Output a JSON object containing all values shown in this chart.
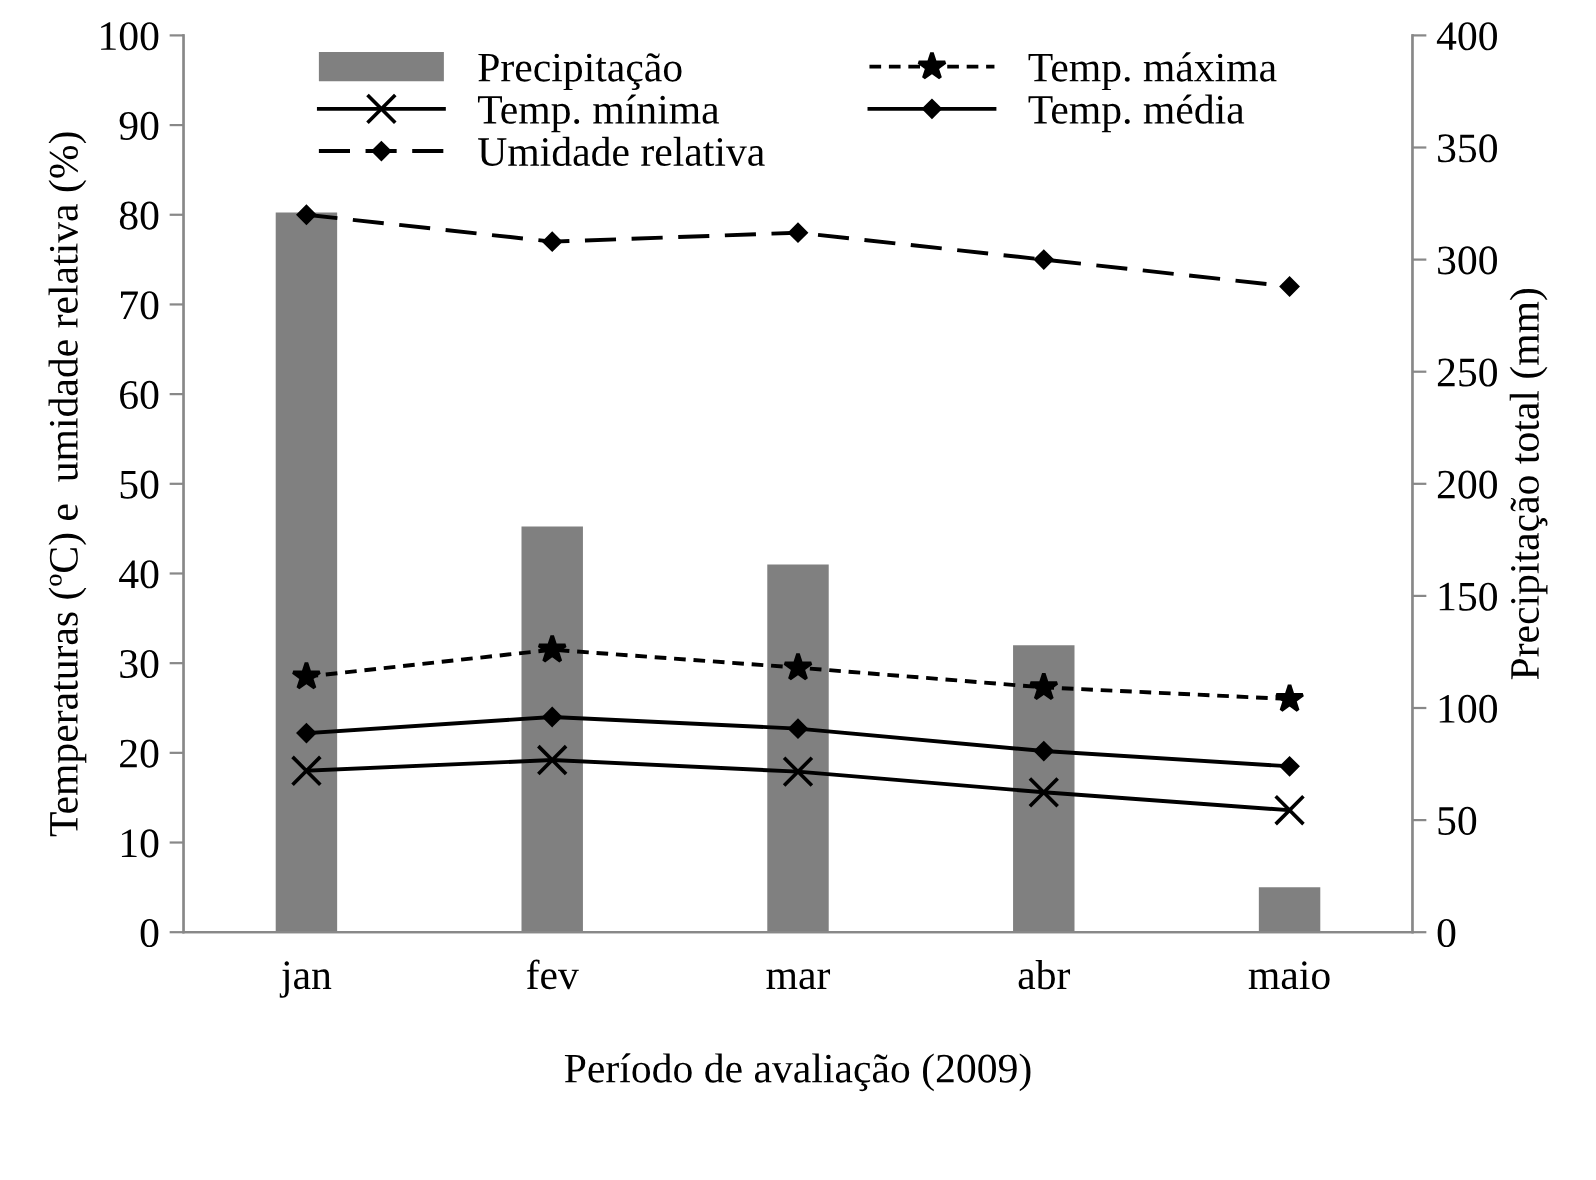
{
  "chart_data": {
    "type": "line",
    "xlabel": "Período de avaliação (2009)",
    "ylabel": "Temperaturas (ºC) e  umidade relativa (%)",
    "y2label": "Precipitação total (mm)",
    "categories": [
      "jan",
      "fev",
      "mar",
      "abr",
      "maio"
    ],
    "series": [
      {
        "name": "Precipitação",
        "type": "bar",
        "axis": "y2",
        "color": "#808080",
        "values": [
          321,
          181,
          164,
          128,
          20
        ]
      },
      {
        "name": "Temp. máxima",
        "color": "#000000",
        "marker": "star",
        "line_style": "dotted",
        "values": [
          28.5,
          31.5,
          29.5,
          27.3,
          26.0
        ]
      },
      {
        "name": "Temp. mínima",
        "color": "#000000",
        "marker": "cross",
        "line_style": "solid",
        "values": [
          18.0,
          19.2,
          17.9,
          15.6,
          13.6
        ]
      },
      {
        "name": "Temp. média",
        "color": "#000000",
        "marker": "diamond",
        "line_style": "solid",
        "values": [
          22.2,
          24.0,
          22.7,
          20.2,
          18.5
        ]
      },
      {
        "name": "Umidade relativa",
        "color": "#000000",
        "marker": "diamond",
        "line_style": "dashed",
        "values": [
          80,
          77,
          78,
          75,
          72
        ]
      }
    ],
    "ylim": [
      0,
      100
    ],
    "yticks": [
      0,
      10,
      20,
      30,
      40,
      50,
      60,
      70,
      80,
      90,
      100
    ],
    "y2lim": [
      0,
      400
    ],
    "y2ticks": [
      0,
      50,
      100,
      150,
      200,
      250,
      300,
      350,
      400
    ],
    "grid": false,
    "legend": "top"
  }
}
